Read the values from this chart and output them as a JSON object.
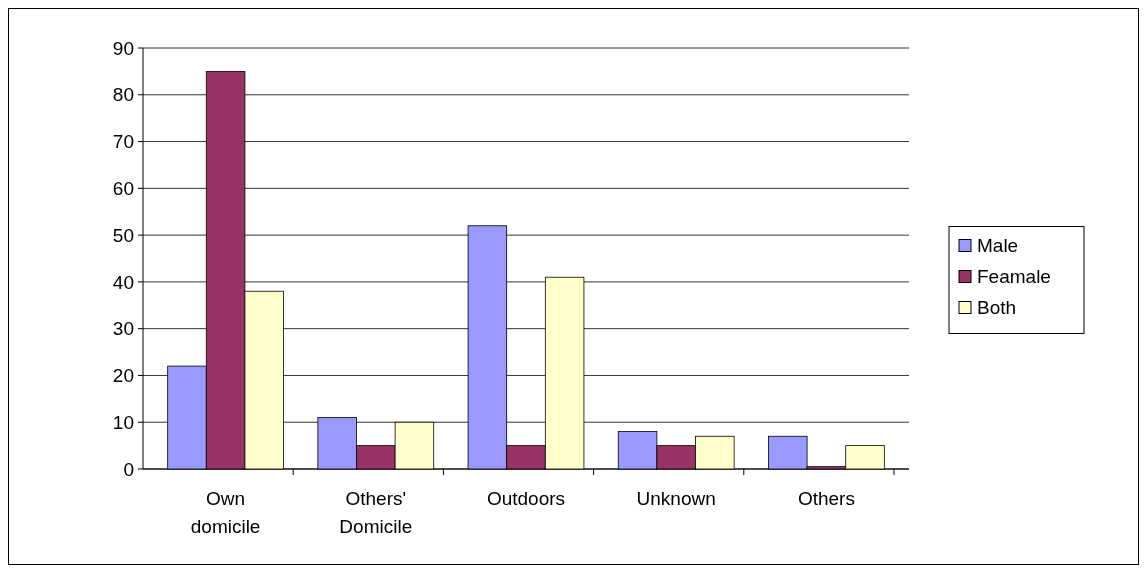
{
  "chart_data": {
    "type": "bar",
    "categories": [
      "Own domicile",
      "Others' Domicile",
      "Outdoors",
      "Unknown",
      "Others"
    ],
    "series": [
      {
        "name": "Male",
        "color": "#9999ff",
        "values": [
          22,
          11,
          52,
          8,
          7
        ]
      },
      {
        "name": "Feamale",
        "color": "#993366",
        "values": [
          85,
          5,
          5,
          5,
          0.5
        ]
      },
      {
        "name": "Both",
        "color": "#ffffcc",
        "values": [
          38,
          10,
          41,
          7,
          5
        ]
      }
    ],
    "ylim": [
      0,
      90
    ],
    "yticks": [
      0,
      10,
      20,
      30,
      40,
      50,
      60,
      70,
      80,
      90
    ],
    "grid": "y",
    "legend": "right"
  }
}
